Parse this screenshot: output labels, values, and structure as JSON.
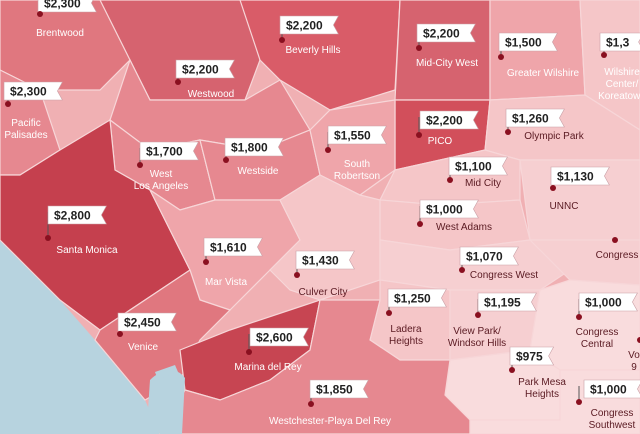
{
  "colors": {
    "ocean": "#b7d3df",
    "high": "#c5404e",
    "upper": "#d6636f",
    "mid": "#e68890",
    "light": "#efa5aa",
    "pale": "#f5c6c8",
    "palest": "#f9dcdd",
    "pin": "#8a1020"
  },
  "regions": [
    {
      "id": "brentwood",
      "label": "Brentwood",
      "price": "$2,300",
      "tone": "mid"
    },
    {
      "id": "pacific-palisades",
      "label": "Pacific\nPalisades",
      "price": "$2,300",
      "tone": "mid"
    },
    {
      "id": "westwood",
      "label": "Westwood",
      "price": "$2,200",
      "tone": "upper"
    },
    {
      "id": "beverly-hills",
      "label": "Beverly Hills",
      "price": "$2,200",
      "tone": "upper"
    },
    {
      "id": "mid-city-west",
      "label": "Mid-City West",
      "price": "$2,200",
      "tone": "upper"
    },
    {
      "id": "greater-wilshire",
      "label": "Greater Wilshire",
      "price": "$1,500",
      "tone": "light"
    },
    {
      "id": "wilshire-center",
      "label": "Wilshire\nCenter/\nKoreatown",
      "price": "$1,3",
      "tone": "light"
    },
    {
      "id": "west-los-angeles",
      "label": "West\nLos Angeles",
      "price": "$1,700",
      "tone": "mid"
    },
    {
      "id": "westside",
      "label": "Westside",
      "price": "$1,800",
      "tone": "mid"
    },
    {
      "id": "south-robertson",
      "label": "South\nRobertson",
      "price": "$1,550",
      "tone": "light"
    },
    {
      "id": "pico",
      "label": "PICO",
      "price": "$2,200",
      "tone": "high"
    },
    {
      "id": "olympic-park",
      "label": "Olympic Park",
      "price": "$1,260",
      "tone": "pale"
    },
    {
      "id": "mid-city",
      "label": "Mid City",
      "price": "$1,100",
      "tone": "pale"
    },
    {
      "id": "unnc",
      "label": "UNNC",
      "price": "$1,130",
      "tone": "pale"
    },
    {
      "id": "santa-monica",
      "label": "Santa Monica",
      "price": "$2,800",
      "tone": "high"
    },
    {
      "id": "west-adams",
      "label": "West Adams",
      "price": "$1,000",
      "tone": "pale"
    },
    {
      "id": "mar-vista",
      "label": "Mar Vista",
      "price": "$1,610",
      "tone": "light"
    },
    {
      "id": "culver-city",
      "label": "Culver City",
      "price": "$1,430",
      "tone": "pale"
    },
    {
      "id": "congress-west",
      "label": "Congress West",
      "price": "$1,070",
      "tone": "pale"
    },
    {
      "id": "congress-east",
      "label": "Congress",
      "price": "",
      "tone": "pale"
    },
    {
      "id": "venice",
      "label": "Venice",
      "price": "$2,450",
      "tone": "mid"
    },
    {
      "id": "ladera-heights",
      "label": "Ladera\nHeights",
      "price": "$1,250",
      "tone": "pale"
    },
    {
      "id": "view-park",
      "label": "View Park/\nWindsor Hills",
      "price": "$1,195",
      "tone": "pale"
    },
    {
      "id": "congress-central",
      "label": "Congress\nCentral",
      "price": "$1,000",
      "tone": "palest"
    },
    {
      "id": "voices",
      "label": "Vo\n9",
      "price": "",
      "tone": "palest"
    },
    {
      "id": "marina-del-rey",
      "label": "Marina del Rey",
      "price": "$2,600",
      "tone": "high"
    },
    {
      "id": "park-mesa-heights",
      "label": "Park Mesa\nHeights",
      "price": "$975",
      "tone": "palest"
    },
    {
      "id": "westchester",
      "label": "Westchester-Playa Del Rey",
      "price": "$1,850",
      "tone": "mid"
    },
    {
      "id": "congress-southwest",
      "label": "Congress\nSouthwest",
      "price": "$1,000",
      "tone": "palest"
    }
  ]
}
